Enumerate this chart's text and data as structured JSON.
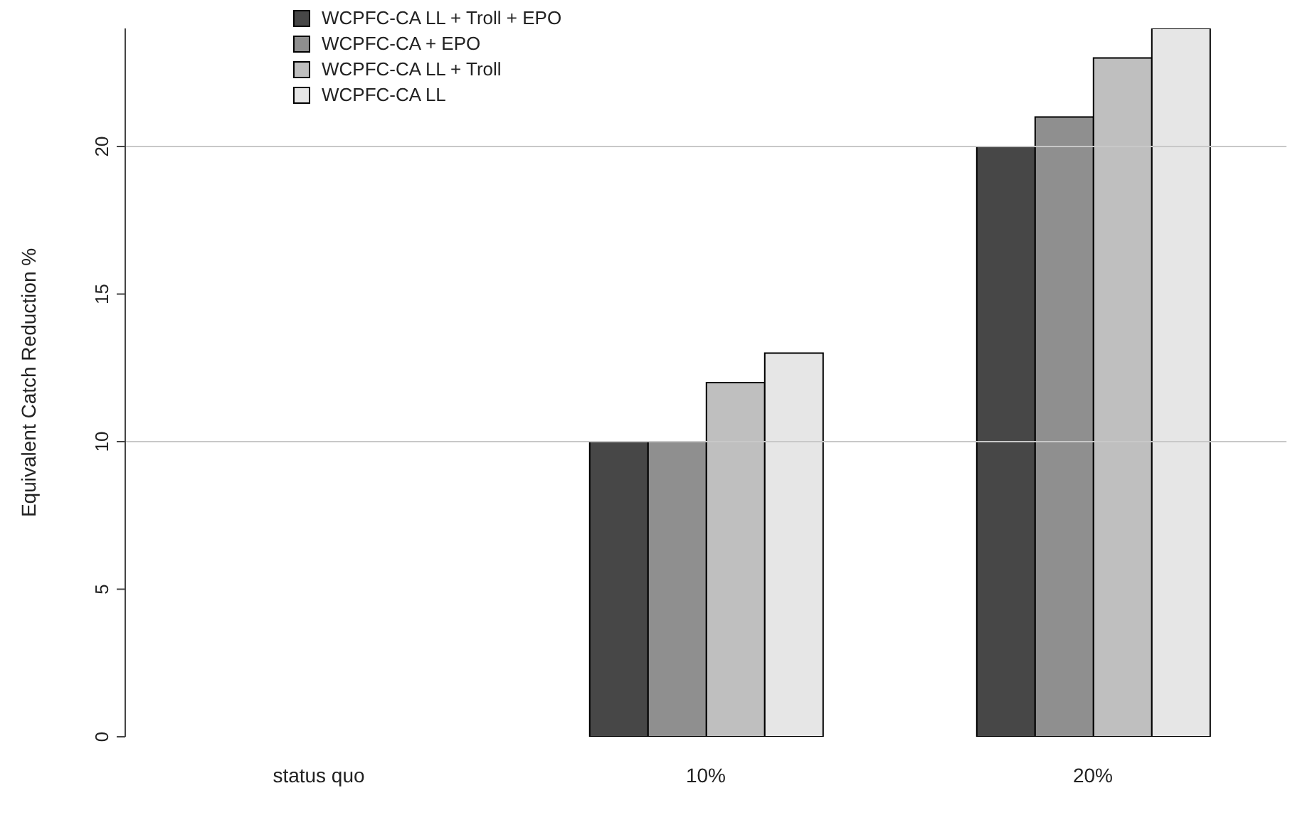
{
  "chart_data": {
    "type": "bar",
    "ylabel": "Equivalent Catch Reduction %",
    "categories": [
      "status quo",
      "10%",
      "20%"
    ],
    "series": [
      {
        "name": "WCPFC-CA LL + Troll + EPO",
        "color": "#474747",
        "values": [
          0,
          10,
          20
        ]
      },
      {
        "name": "WCPFC-CA + EPO",
        "color": "#8f8f8f",
        "values": [
          0,
          10,
          21
        ]
      },
      {
        "name": "WCPFC-CA LL + Troll",
        "color": "#bfbfbf",
        "values": [
          0,
          12,
          23
        ]
      },
      {
        "name": "WCPFC-CA LL",
        "color": "#e6e6e6",
        "values": [
          0,
          13,
          24
        ]
      }
    ],
    "ylim": [
      0,
      24
    ],
    "yticks": [
      0,
      5,
      10,
      15,
      20
    ],
    "ref_lines": [
      {
        "axis": "y",
        "value": 10,
        "color": "#c8c8c8"
      },
      {
        "axis": "y",
        "value": 20,
        "color": "#c8c8c8"
      }
    ],
    "grid": false,
    "legend": "top left"
  }
}
